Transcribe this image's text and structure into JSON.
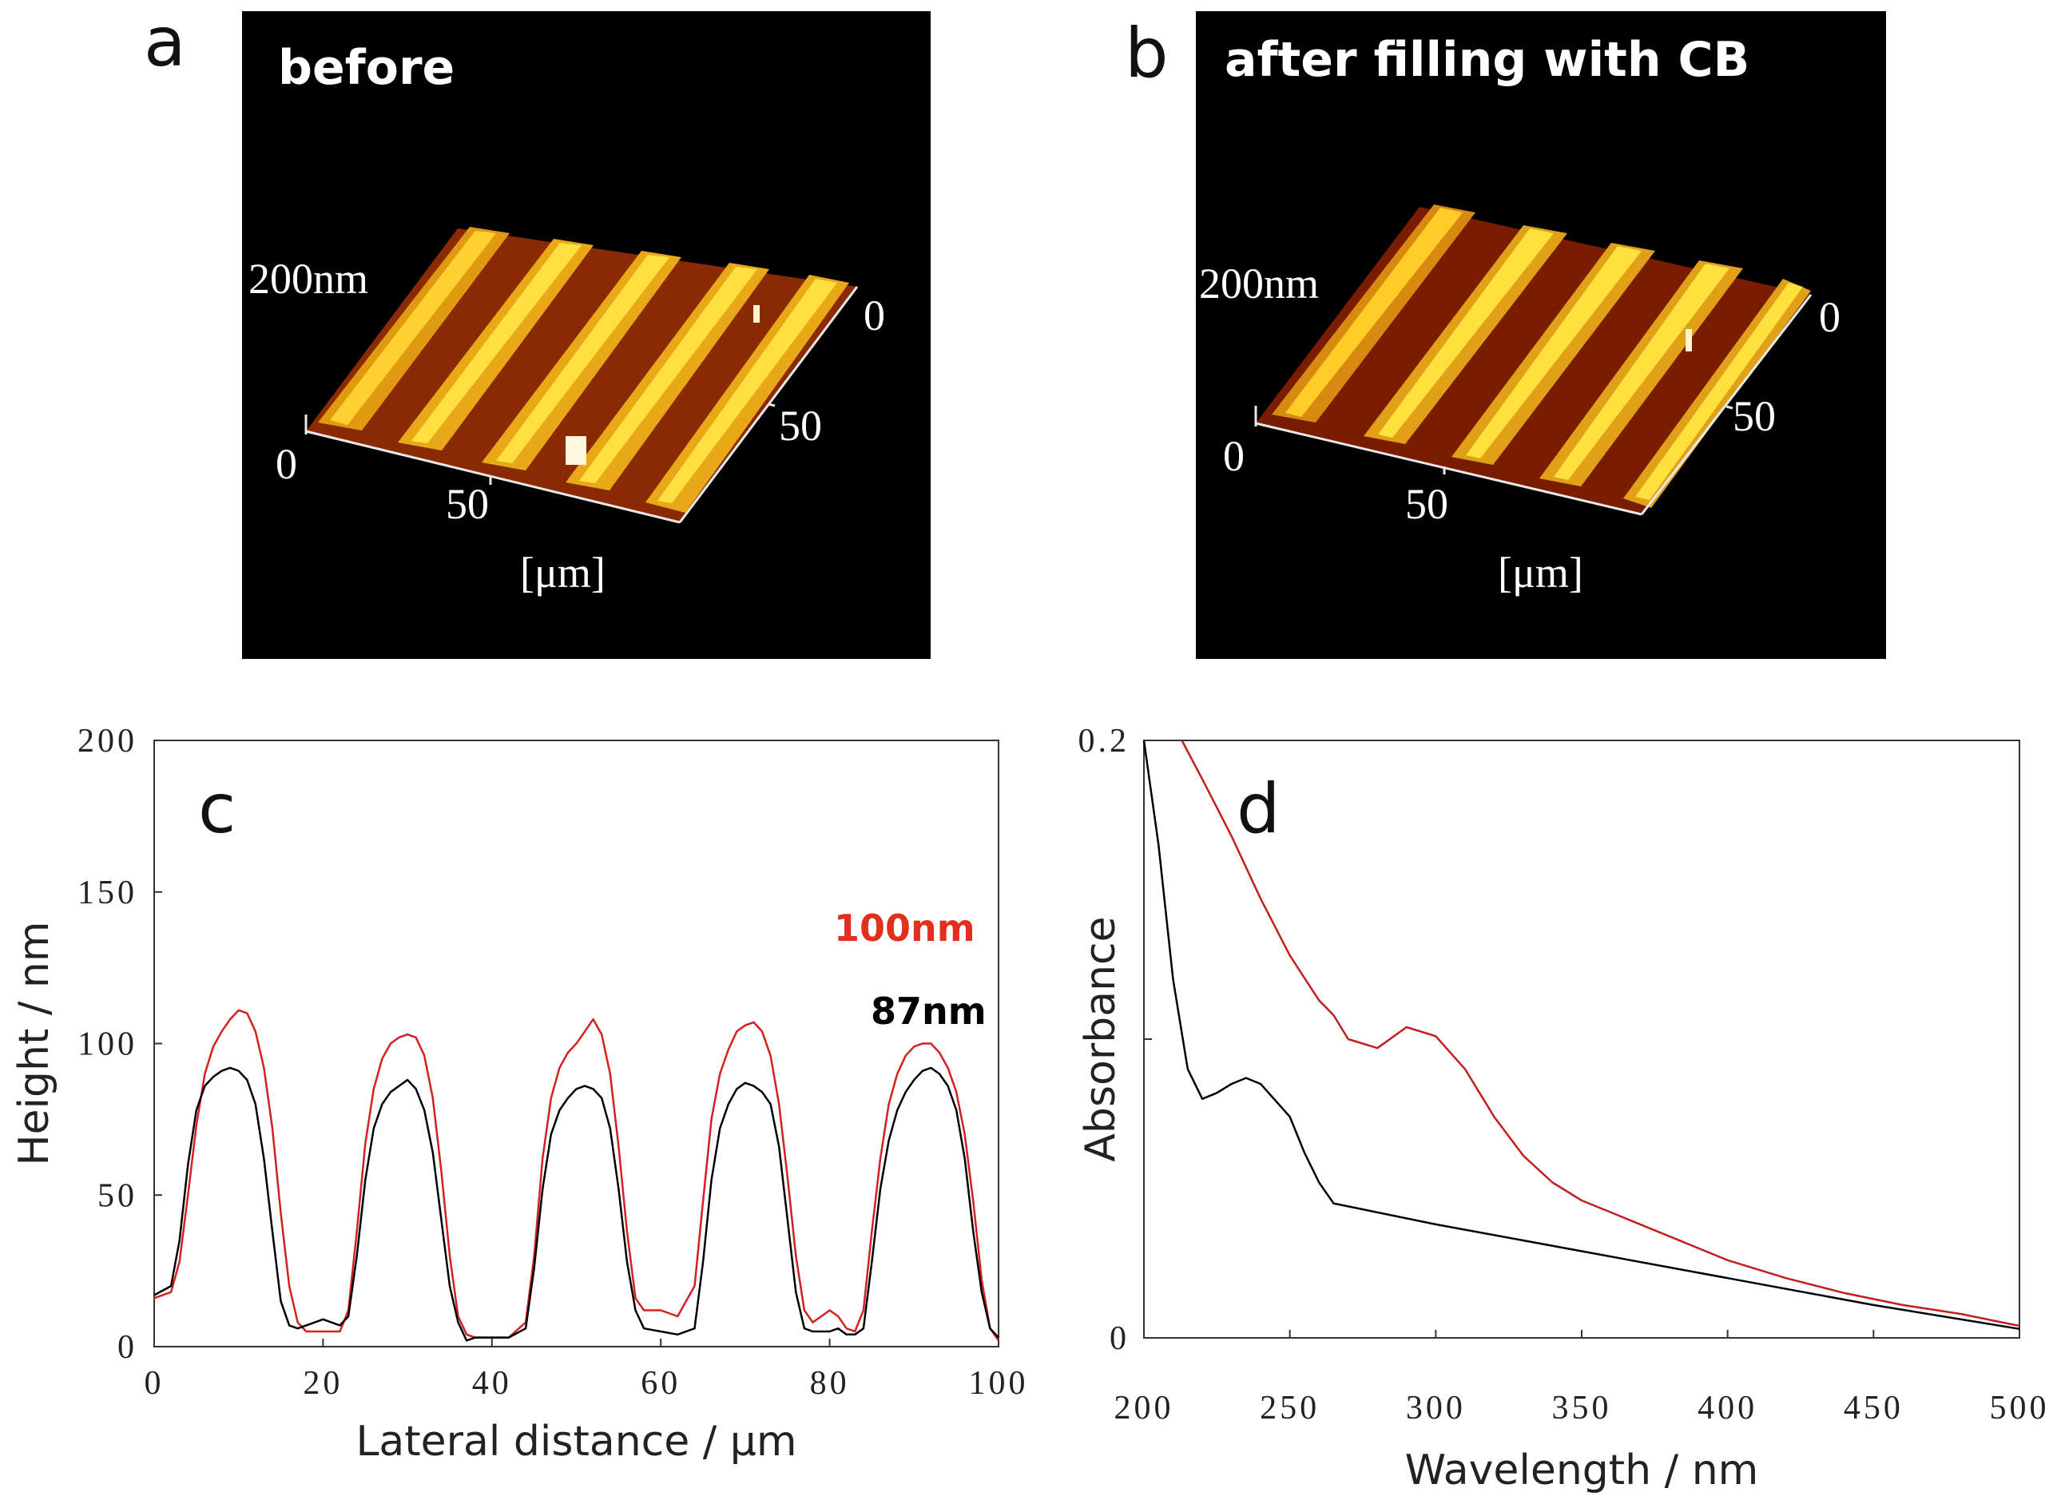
{
  "panels": {
    "a": {
      "letter": "a",
      "title": "before",
      "z_label": "200nm",
      "origin": "0",
      "axis_x_mid": "50",
      "axis_y_start": "0",
      "axis_y_mid": "50",
      "unit": "[μm]"
    },
    "b": {
      "letter": "b",
      "title": "after filling with CB",
      "z_label": "200nm",
      "origin": "0",
      "axis_x_mid": "50",
      "axis_y_start": "0",
      "axis_y_mid": "50",
      "unit": "[μm]"
    }
  },
  "chart_data": [
    {
      "panel": "c",
      "type": "line",
      "xlabel": "Lateral distance / μm",
      "ylabel": "Height / nm",
      "xlim": [
        0,
        100
      ],
      "ylim": [
        0,
        200
      ],
      "xticks": [
        "0",
        "20",
        "40",
        "60",
        "80",
        "100"
      ],
      "yticks": [
        "0",
        "50",
        "100",
        "150",
        "200"
      ],
      "annotations": [
        {
          "text": "100nm",
          "color": "#e0301e"
        },
        {
          "text": "87nm",
          "color": "#000000"
        }
      ],
      "series": [
        {
          "name": "after filling with CB",
          "color": "#d42020",
          "x": [
            0,
            2,
            3,
            4,
            5,
            6,
            7,
            8,
            9,
            10,
            11,
            12,
            13,
            14,
            15,
            16,
            17,
            18,
            20,
            22,
            23,
            24,
            25,
            26,
            27,
            28,
            29,
            30,
            31,
            32,
            33,
            34,
            35,
            36,
            37,
            38,
            40,
            42,
            44,
            45,
            46,
            47,
            48,
            49,
            50,
            51,
            52,
            53,
            54,
            55,
            56,
            57,
            58,
            60,
            62,
            64,
            65,
            66,
            67,
            68,
            69,
            70,
            71,
            72,
            73,
            74,
            75,
            76,
            77,
            78,
            80,
            81,
            82,
            83,
            84,
            85,
            86,
            87,
            88,
            89,
            90,
            91,
            92,
            93,
            94,
            95,
            96,
            97,
            98,
            99,
            100
          ],
          "values": [
            16,
            18,
            28,
            50,
            73,
            90,
            99,
            104,
            108,
            111,
            110,
            104,
            92,
            72,
            44,
            20,
            8,
            5,
            5,
            5,
            12,
            38,
            67,
            85,
            95,
            100,
            102,
            103,
            102,
            96,
            82,
            58,
            30,
            10,
            4,
            3,
            3,
            3,
            8,
            30,
            62,
            82,
            92,
            97,
            100,
            104,
            108,
            103,
            90,
            66,
            38,
            16,
            12,
            12,
            10,
            20,
            48,
            75,
            90,
            98,
            104,
            106,
            107,
            104,
            96,
            80,
            56,
            30,
            12,
            8,
            12,
            10,
            6,
            5,
            12,
            38,
            62,
            80,
            90,
            96,
            99,
            100,
            100,
            97,
            92,
            84,
            70,
            48,
            22,
            6,
            2
          ]
        },
        {
          "name": "before",
          "color": "#000000",
          "x": [
            0,
            2,
            3,
            4,
            5,
            6,
            7,
            8,
            9,
            10,
            11,
            12,
            13,
            14,
            15,
            16,
            17,
            18,
            20,
            22,
            23,
            24,
            25,
            26,
            27,
            28,
            29,
            30,
            31,
            32,
            33,
            34,
            35,
            36,
            37,
            38,
            40,
            42,
            44,
            45,
            46,
            47,
            48,
            49,
            50,
            51,
            52,
            53,
            54,
            55,
            56,
            57,
            58,
            60,
            62,
            64,
            65,
            66,
            67,
            68,
            69,
            70,
            71,
            72,
            73,
            74,
            75,
            76,
            77,
            78,
            80,
            81,
            82,
            83,
            84,
            85,
            86,
            87,
            88,
            89,
            90,
            91,
            92,
            93,
            94,
            95,
            96,
            97,
            98,
            99,
            100
          ],
          "values": [
            17,
            20,
            35,
            60,
            78,
            86,
            89,
            91,
            92,
            91,
            88,
            80,
            62,
            38,
            15,
            7,
            6,
            7,
            9,
            7,
            10,
            30,
            55,
            72,
            80,
            84,
            86,
            88,
            85,
            78,
            64,
            42,
            20,
            8,
            2,
            3,
            3,
            3,
            6,
            26,
            52,
            70,
            78,
            82,
            85,
            86,
            85,
            82,
            72,
            52,
            28,
            12,
            6,
            5,
            4,
            6,
            28,
            55,
            72,
            80,
            85,
            87,
            86,
            84,
            80,
            66,
            42,
            18,
            6,
            5,
            5,
            6,
            4,
            4,
            6,
            28,
            52,
            68,
            78,
            84,
            88,
            91,
            92,
            90,
            86,
            78,
            62,
            38,
            18,
            6,
            3
          ]
        }
      ]
    },
    {
      "panel": "d",
      "type": "line",
      "xlabel": "Wavelength / nm",
      "ylabel": "Absorbance",
      "xlim": [
        200,
        500
      ],
      "ylim": [
        0,
        0.2
      ],
      "xticks": [
        "200",
        "250",
        "300",
        "350",
        "400",
        "450",
        "500"
      ],
      "yticks": [
        "0",
        "0.2"
      ],
      "series": [
        {
          "name": "after filling with CB",
          "color": "#c41e1e",
          "x": [
            213,
            220,
            230,
            240,
            250,
            260,
            265,
            270,
            280,
            290,
            300,
            310,
            320,
            330,
            340,
            350,
            360,
            380,
            400,
            420,
            440,
            460,
            480,
            490,
            500
          ],
          "values": [
            0.2,
            0.187,
            0.168,
            0.147,
            0.128,
            0.113,
            0.108,
            0.1,
            0.097,
            0.104,
            0.101,
            0.09,
            0.074,
            0.061,
            0.052,
            0.046,
            0.042,
            0.034,
            0.026,
            0.02,
            0.015,
            0.011,
            0.008,
            0.006,
            0.004
          ]
        },
        {
          "name": "before",
          "color": "#000000",
          "x": [
            200,
            205,
            210,
            215,
            220,
            225,
            230,
            235,
            240,
            250,
            255,
            260,
            265,
            270,
            300,
            350,
            400,
            450,
            500
          ],
          "values": [
            0.2,
            0.165,
            0.12,
            0.09,
            0.08,
            0.082,
            0.085,
            0.087,
            0.085,
            0.074,
            0.062,
            0.052,
            0.045,
            0.044,
            0.038,
            0.029,
            0.02,
            0.011,
            0.003
          ]
        }
      ]
    }
  ]
}
